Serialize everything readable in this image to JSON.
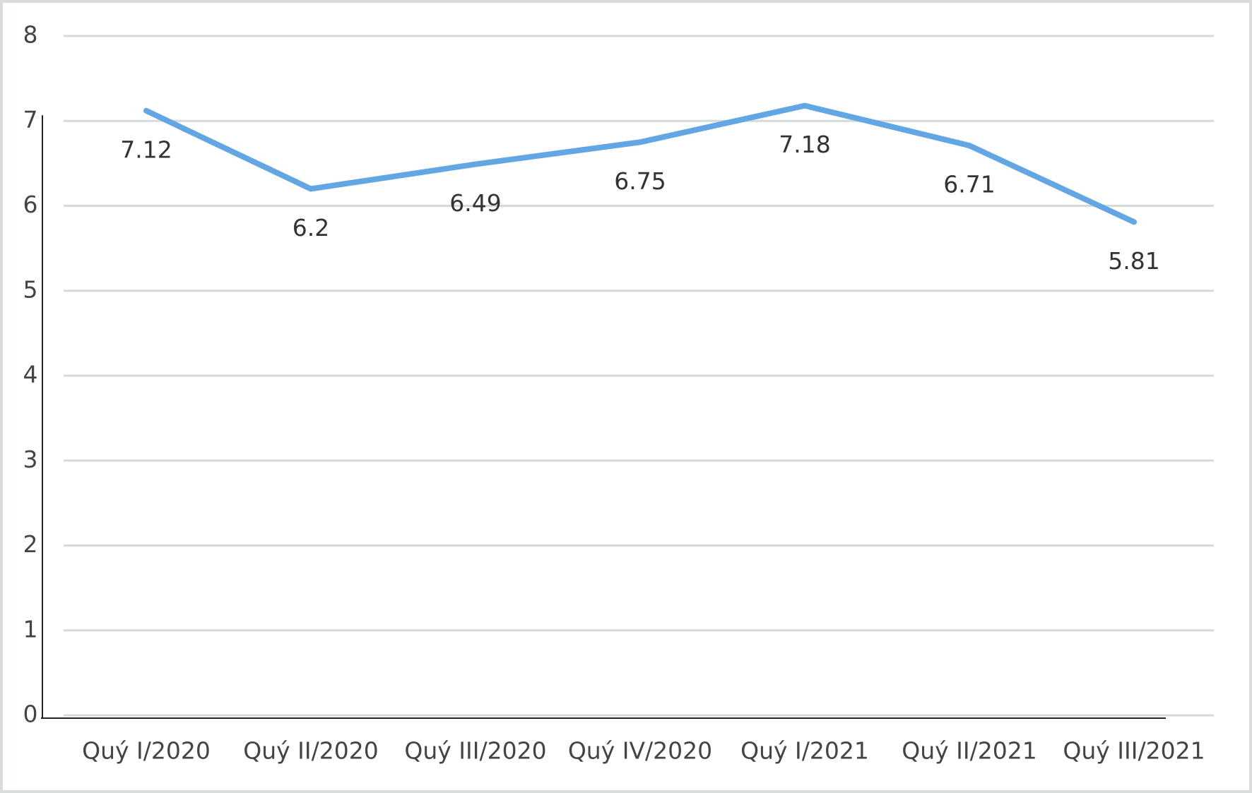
{
  "chart_data": {
    "type": "line",
    "categories": [
      "Quý I/2020",
      "Quý II/2020",
      "Quý III/2020",
      "Quý IV/2020",
      "Quý I/2021",
      "Quý II/2021",
      "Quý III/2021"
    ],
    "values": [
      7.12,
      6.2,
      6.49,
      6.75,
      7.18,
      6.71,
      5.81
    ],
    "color": "#62a6e3",
    "ylim": [
      0,
      8
    ],
    "yticks": [
      0,
      1,
      2,
      3,
      4,
      5,
      6,
      7,
      8
    ],
    "grid": true
  }
}
